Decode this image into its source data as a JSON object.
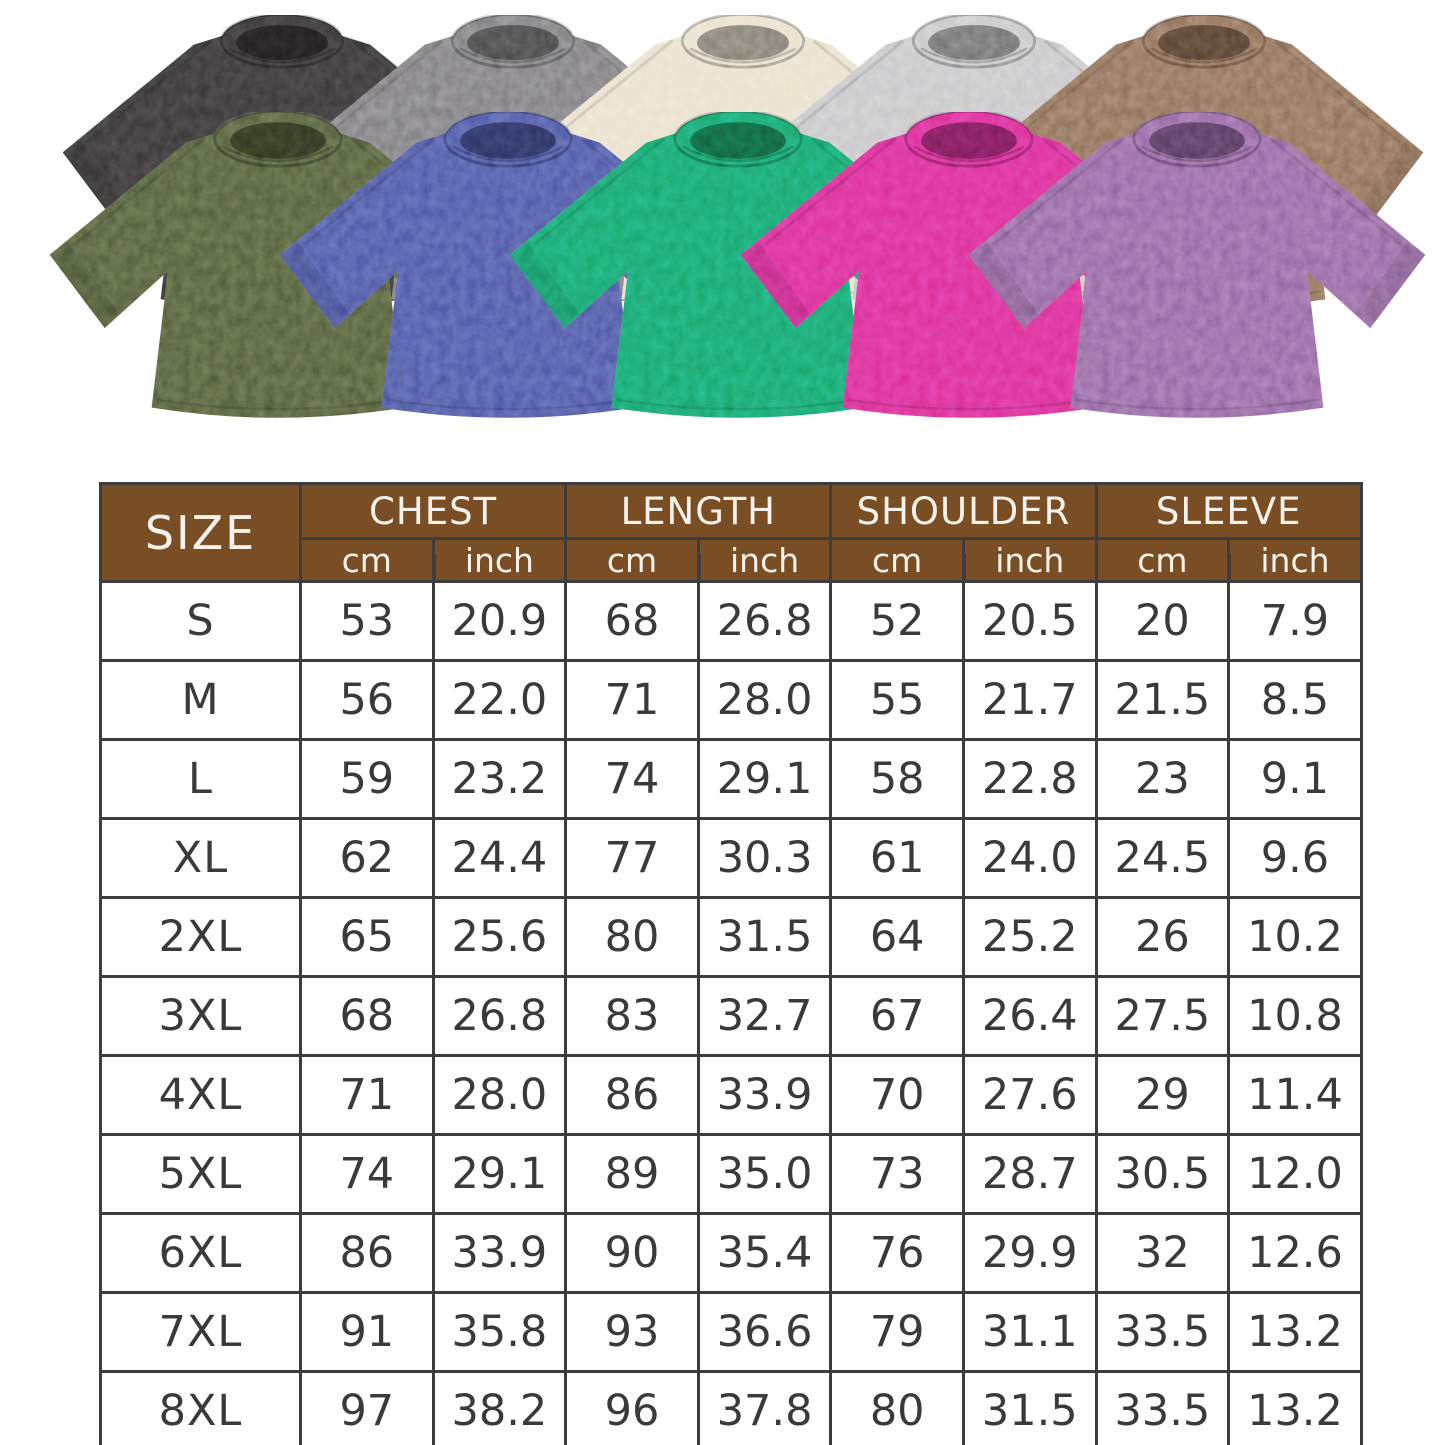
{
  "page": {
    "background": "#ffffff"
  },
  "product_gallery": {
    "description": "acid-wash oversized t-shirts in ten colors",
    "back_row": [
      {
        "name": "black",
        "color": "#343132"
      },
      {
        "name": "gray",
        "color": "#7a787b"
      },
      {
        "name": "cream",
        "color": "#e9dfca"
      },
      {
        "name": "light-gray",
        "color": "#c6c5c7"
      },
      {
        "name": "brown",
        "color": "#8c6a52"
      }
    ],
    "front_row": [
      {
        "name": "army-green",
        "color": "#4d5736"
      },
      {
        "name": "blue",
        "color": "#4751a2"
      },
      {
        "name": "green",
        "color": "#16a267"
      },
      {
        "name": "rose-pink",
        "color": "#da2a92"
      },
      {
        "name": "purple",
        "color": "#90609f"
      }
    ]
  },
  "size_chart": {
    "header_bg": "#7a4e24",
    "header_text_color": "#f7f3ec",
    "size_column_label": "SIZE",
    "group_labels": [
      "CHEST",
      "LENGTH",
      "SHOULDER",
      "SLEEVE"
    ],
    "unit_labels": [
      "cm",
      "inch"
    ]
  },
  "chart_data": {
    "type": "table",
    "title": "T-shirt size chart",
    "columns": [
      "SIZE",
      "CHEST cm",
      "CHEST inch",
      "LENGTH cm",
      "LENGTH inch",
      "SHOULDER cm",
      "SHOULDER inch",
      "SLEEVE cm",
      "SLEEVE inch"
    ],
    "rows": [
      [
        "S",
        "53",
        "20.9",
        "68",
        "26.8",
        "52",
        "20.5",
        "20",
        "7.9"
      ],
      [
        "M",
        "56",
        "22.0",
        "71",
        "28.0",
        "55",
        "21.7",
        "21.5",
        "8.5"
      ],
      [
        "L",
        "59",
        "23.2",
        "74",
        "29.1",
        "58",
        "22.8",
        "23",
        "9.1"
      ],
      [
        "XL",
        "62",
        "24.4",
        "77",
        "30.3",
        "61",
        "24.0",
        "24.5",
        "9.6"
      ],
      [
        "2XL",
        "65",
        "25.6",
        "80",
        "31.5",
        "64",
        "25.2",
        "26",
        "10.2"
      ],
      [
        "3XL",
        "68",
        "26.8",
        "83",
        "32.7",
        "67",
        "26.4",
        "27.5",
        "10.8"
      ],
      [
        "4XL",
        "71",
        "28.0",
        "86",
        "33.9",
        "70",
        "27.6",
        "29",
        "11.4"
      ],
      [
        "5XL",
        "74",
        "29.1",
        "89",
        "35.0",
        "73",
        "28.7",
        "30.5",
        "12.0"
      ],
      [
        "6XL",
        "86",
        "33.9",
        "90",
        "35.4",
        "76",
        "29.9",
        "32",
        "12.6"
      ],
      [
        "7XL",
        "91",
        "35.8",
        "93",
        "36.6",
        "79",
        "31.1",
        "33.5",
        "13.2"
      ],
      [
        "8XL",
        "97",
        "38.2",
        "96",
        "37.8",
        "80",
        "31.5",
        "33.5",
        "13.2"
      ]
    ]
  }
}
